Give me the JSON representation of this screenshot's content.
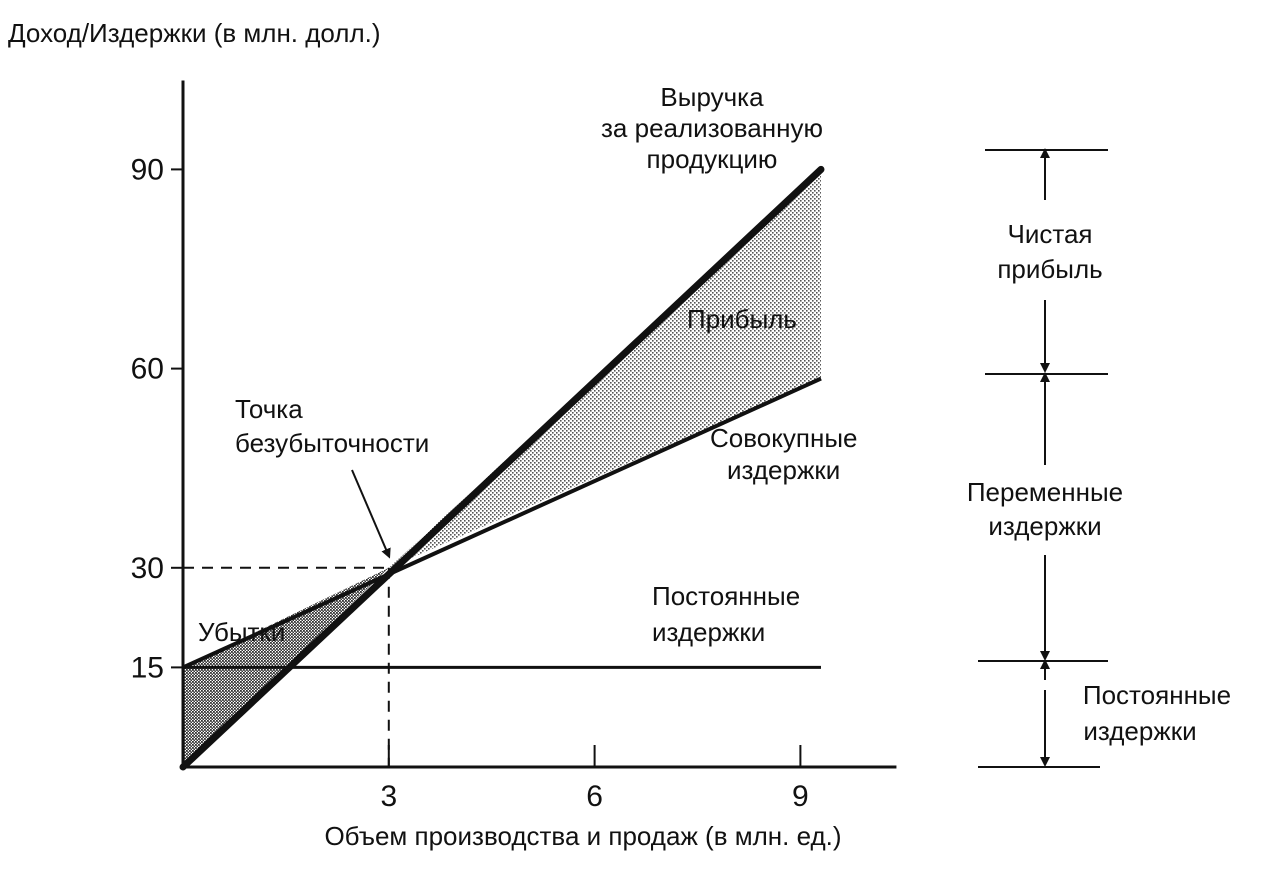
{
  "chart_data": {
    "type": "line",
    "ylabel": "Доход/Издержки (в млн. долл.)",
    "xlabel": "Объем производства и продаж (в млн. ед.)",
    "x_ticks": [
      3,
      6,
      9
    ],
    "y_ticks": [
      15,
      30,
      60,
      90
    ],
    "xlim": [
      0,
      10.4
    ],
    "ylim": [
      0,
      104
    ],
    "series": [
      {
        "name": "Выручка за реализованную продукцию",
        "x": [
          0,
          9.3
        ],
        "y": [
          0,
          90
        ]
      },
      {
        "name": "Совокупные издержки",
        "x": [
          0,
          9.3
        ],
        "y": [
          15,
          58.5
        ]
      },
      {
        "name": "Постоянные издержки",
        "x": [
          0,
          9.3
        ],
        "y": [
          15,
          15
        ]
      }
    ],
    "break_even": {
      "x": 3,
      "y": 30
    },
    "annotations": {
      "revenue": [
        "Выручка",
        "за реализованную",
        "продукцию"
      ],
      "total_costs": [
        "Совокупные",
        "издержки"
      ],
      "fixed_costs": [
        "Постоянные",
        "издержки"
      ],
      "break_even": [
        "Точка",
        "безубыточности"
      ],
      "profit": "Прибыль",
      "loss": "Убытки"
    },
    "side_scale": {
      "net_profit": [
        "Чистая",
        "прибыль"
      ],
      "variable_costs": [
        "Переменные",
        "издержки"
      ],
      "fixed_costs": [
        "Постоянные",
        "издержки"
      ]
    },
    "grid": false,
    "legend": "none"
  }
}
